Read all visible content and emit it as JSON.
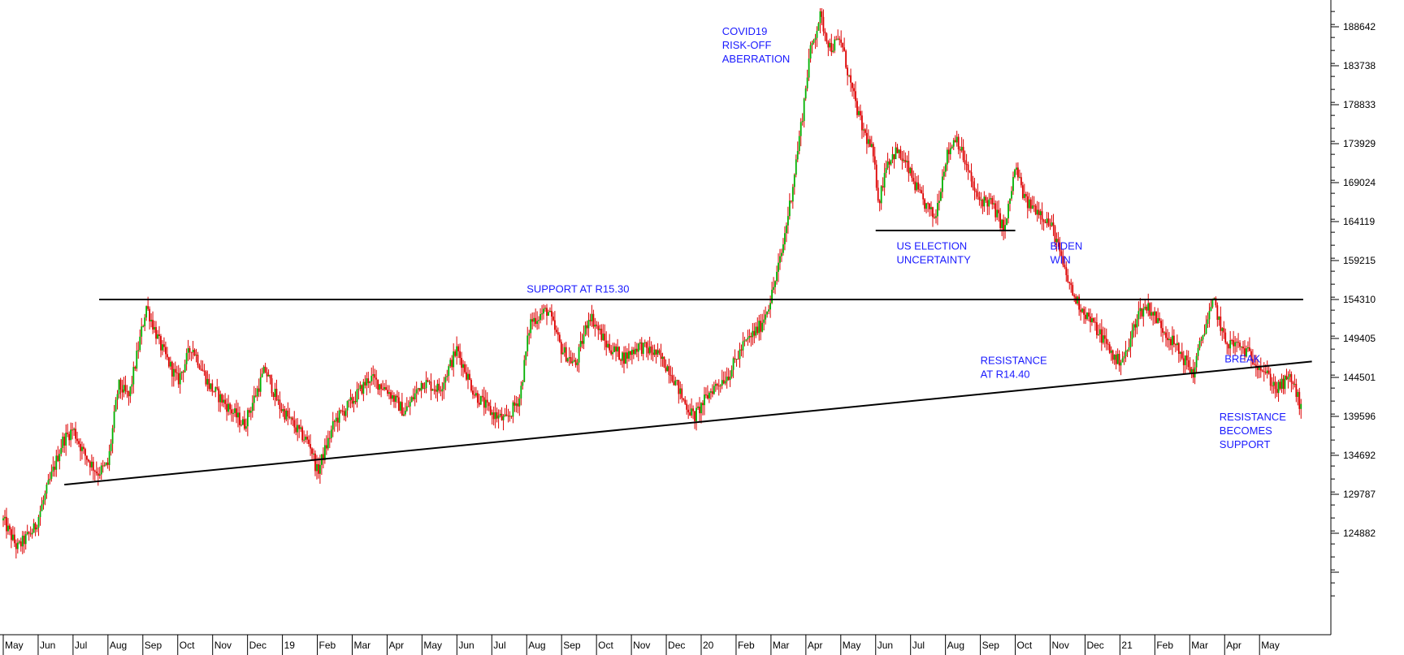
{
  "chart_data": {
    "type": "candlestick",
    "title": "",
    "xlabel": "",
    "ylabel": "",
    "ylim": [
      117000,
      194000
    ],
    "y_ticks": [
      188642,
      183738,
      178833,
      173929,
      169024,
      164119,
      159215,
      154310,
      149405,
      144501,
      139596,
      134692,
      129787,
      124882
    ],
    "x_tick_labels": [
      "May",
      "Jun",
      "Jul",
      "Aug",
      "Sep",
      "Oct",
      "Nov",
      "Dec",
      "19",
      "Feb",
      "Mar",
      "Apr",
      "May",
      "Jun",
      "Jul",
      "Aug",
      "Sep",
      "Oct",
      "Nov",
      "Dec",
      "20",
      "Feb",
      "Mar",
      "Apr",
      "May",
      "Jun",
      "Jul",
      "Aug",
      "Sep",
      "Oct",
      "Nov",
      "Dec",
      "21",
      "Feb",
      "Mar",
      "Apr",
      "May"
    ],
    "x_months": [
      "2018-05",
      "2018-06",
      "2018-07",
      "2018-08",
      "2018-09",
      "2018-10",
      "2018-11",
      "2018-12",
      "2019-01",
      "2019-02",
      "2019-03",
      "2019-04",
      "2019-05",
      "2019-06",
      "2019-07",
      "2019-08",
      "2019-09",
      "2019-10",
      "2019-11",
      "2019-12",
      "2020-01",
      "2020-02",
      "2020-03",
      "2020-04",
      "2020-05",
      "2020-06",
      "2020-07",
      "2020-08",
      "2020-09",
      "2020-10",
      "2020-11",
      "2020-12",
      "2021-01",
      "2021-02",
      "2021-03",
      "2021-04",
      "2021-05"
    ],
    "price_path": [
      {
        "month": 0.0,
        "value": 126500
      },
      {
        "month": 0.4,
        "value": 123000
      },
      {
        "month": 0.9,
        "value": 125500
      },
      {
        "month": 1.3,
        "value": 131000
      },
      {
        "month": 1.7,
        "value": 136500
      },
      {
        "month": 2.0,
        "value": 138000
      },
      {
        "month": 2.3,
        "value": 135000
      },
      {
        "month": 2.7,
        "value": 132500
      },
      {
        "month": 3.0,
        "value": 133500
      },
      {
        "month": 3.3,
        "value": 143500
      },
      {
        "month": 3.6,
        "value": 142000
      },
      {
        "month": 4.1,
        "value": 153500
      },
      {
        "month": 4.5,
        "value": 148500
      },
      {
        "month": 5.0,
        "value": 144000
      },
      {
        "month": 5.4,
        "value": 148500
      },
      {
        "month": 5.9,
        "value": 143500
      },
      {
        "month": 6.4,
        "value": 141000
      },
      {
        "month": 6.9,
        "value": 138500
      },
      {
        "month": 7.2,
        "value": 142000
      },
      {
        "month": 7.5,
        "value": 145500
      },
      {
        "month": 7.9,
        "value": 141000
      },
      {
        "month": 8.4,
        "value": 138000
      },
      {
        "month": 8.8,
        "value": 136000
      },
      {
        "month": 9.0,
        "value": 132500
      },
      {
        "month": 9.5,
        "value": 139000
      },
      {
        "month": 10.0,
        "value": 141500
      },
      {
        "month": 10.5,
        "value": 144500
      },
      {
        "month": 11.0,
        "value": 143000
      },
      {
        "month": 11.5,
        "value": 140000
      },
      {
        "month": 12.0,
        "value": 144000
      },
      {
        "month": 12.5,
        "value": 143000
      },
      {
        "month": 13.0,
        "value": 148000
      },
      {
        "month": 13.5,
        "value": 142500
      },
      {
        "month": 14.0,
        "value": 140000
      },
      {
        "month": 14.4,
        "value": 139000
      },
      {
        "month": 14.8,
        "value": 142000
      },
      {
        "month": 15.1,
        "value": 151500
      },
      {
        "month": 15.6,
        "value": 153000
      },
      {
        "month": 16.0,
        "value": 148000
      },
      {
        "month": 16.4,
        "value": 146000
      },
      {
        "month": 16.8,
        "value": 152500
      },
      {
        "month": 17.3,
        "value": 148500
      },
      {
        "month": 17.8,
        "value": 147000
      },
      {
        "month": 18.2,
        "value": 148500
      },
      {
        "month": 18.7,
        "value": 147500
      },
      {
        "month": 19.1,
        "value": 145500
      },
      {
        "month": 19.5,
        "value": 141500
      },
      {
        "month": 19.8,
        "value": 139500
      },
      {
        "month": 20.3,
        "value": 143000
      },
      {
        "month": 20.8,
        "value": 145000
      },
      {
        "month": 21.2,
        "value": 148500
      },
      {
        "month": 21.7,
        "value": 151000
      },
      {
        "month": 22.0,
        "value": 154500
      },
      {
        "month": 22.3,
        "value": 160000
      },
      {
        "month": 22.6,
        "value": 168000
      },
      {
        "month": 22.9,
        "value": 177500
      },
      {
        "month": 23.1,
        "value": 185000
      },
      {
        "month": 23.4,
        "value": 190000
      },
      {
        "month": 23.7,
        "value": 186000
      },
      {
        "month": 24.0,
        "value": 187000
      },
      {
        "month": 24.3,
        "value": 181000
      },
      {
        "month": 24.6,
        "value": 176000
      },
      {
        "month": 24.9,
        "value": 173000
      },
      {
        "month": 25.1,
        "value": 166500
      },
      {
        "month": 25.3,
        "value": 171500
      },
      {
        "month": 25.6,
        "value": 173000
      },
      {
        "month": 25.9,
        "value": 171000
      },
      {
        "month": 26.3,
        "value": 167000
      },
      {
        "month": 26.7,
        "value": 164500
      },
      {
        "month": 27.0,
        "value": 172000
      },
      {
        "month": 27.3,
        "value": 175000
      },
      {
        "month": 27.6,
        "value": 171000
      },
      {
        "month": 27.9,
        "value": 167000
      },
      {
        "month": 28.3,
        "value": 166500
      },
      {
        "month": 28.7,
        "value": 163000
      },
      {
        "month": 29.0,
        "value": 171000
      },
      {
        "month": 29.3,
        "value": 166500
      },
      {
        "month": 29.7,
        "value": 165500
      },
      {
        "month": 30.1,
        "value": 163000
      },
      {
        "month": 30.4,
        "value": 158000
      },
      {
        "month": 30.7,
        "value": 154500
      },
      {
        "month": 31.1,
        "value": 152000
      },
      {
        "month": 31.5,
        "value": 149500
      },
      {
        "month": 31.9,
        "value": 146500
      },
      {
        "month": 32.2,
        "value": 147500
      },
      {
        "month": 32.5,
        "value": 152500
      },
      {
        "month": 32.8,
        "value": 153500
      },
      {
        "month": 33.1,
        "value": 151500
      },
      {
        "month": 33.5,
        "value": 149000
      },
      {
        "month": 33.8,
        "value": 147000
      },
      {
        "month": 34.1,
        "value": 145000
      },
      {
        "month": 34.4,
        "value": 150500
      },
      {
        "month": 34.7,
        "value": 154000
      },
      {
        "month": 35.0,
        "value": 149000
      },
      {
        "month": 35.4,
        "value": 148500
      },
      {
        "month": 35.8,
        "value": 147000
      },
      {
        "month": 36.1,
        "value": 145500
      },
      {
        "month": 36.5,
        "value": 143000
      },
      {
        "month": 36.9,
        "value": 144500
      },
      {
        "month": 37.2,
        "value": 140500
      }
    ],
    "horizontal_lines": [
      {
        "value": 154310,
        "from_month": 2.75,
        "to_month": 37.25
      },
      {
        "value": 163000,
        "from_month": 25.0,
        "to_month": 29.0
      }
    ],
    "trend_line": {
      "from": {
        "month": 1.75,
        "value": 131000
      },
      "to": {
        "month": 37.5,
        "value": 146500
      }
    },
    "annotations": [
      {
        "lines": [
          "SUPPORT AT R15.30"
        ],
        "month": 15.0,
        "value": 155200
      },
      {
        "lines": [
          "COVID19",
          "RISK-OFF",
          "ABERRATION"
        ],
        "month": 20.6,
        "value": 187600
      },
      {
        "lines": [
          "US ELECTION",
          "UNCERTAINTY"
        ],
        "month": 25.6,
        "value": 160600
      },
      {
        "lines": [
          "BIDEN",
          "WIN"
        ],
        "month": 30.0,
        "value": 160600
      },
      {
        "lines": [
          "RESISTANCE",
          "AT R14.40"
        ],
        "month": 28.0,
        "value": 146200
      },
      {
        "lines": [
          "BREAK"
        ],
        "month": 35.0,
        "value": 146400
      },
      {
        "lines": [
          "RESISTANCE",
          "BECOMES",
          "SUPPORT"
        ],
        "month": 34.85,
        "value": 139100
      }
    ],
    "colors": {
      "up": "#00b000",
      "down": "#dd0000",
      "lines": "#000000",
      "annotation": "#1a1aff",
      "axis": "#000000",
      "background": "#ffffff"
    },
    "grid": false,
    "legend": "none"
  }
}
